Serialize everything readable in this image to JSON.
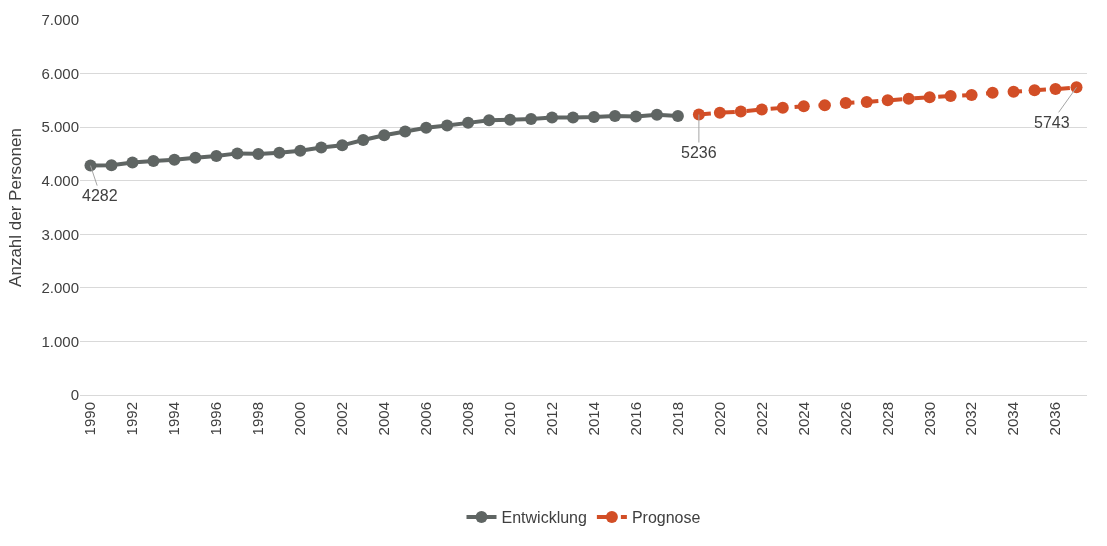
{
  "chart_data": {
    "type": "line",
    "ylabel": "Anzahl der Personen",
    "x": [
      1990,
      1991,
      1992,
      1993,
      1994,
      1995,
      1996,
      1997,
      1998,
      1999,
      2000,
      2001,
      2002,
      2003,
      2004,
      2005,
      2006,
      2007,
      2008,
      2009,
      2010,
      2011,
      2012,
      2013,
      2014,
      2015,
      2016,
      2017,
      2018
    ],
    "series": [
      {
        "name": "Entwicklung",
        "color": "#5f6563",
        "line_style": "solid",
        "values": [
          4282,
          4290,
          4340,
          4370,
          4390,
          4430,
          4460,
          4510,
          4500,
          4520,
          4560,
          4620,
          4660,
          4760,
          4850,
          4920,
          4990,
          5030,
          5080,
          5130,
          5140,
          5150,
          5180,
          5180,
          5190,
          5210,
          5200,
          5230,
          5210
        ]
      },
      {
        "name": "Prognose",
        "color": "#d24e26",
        "line_style": "dashed",
        "x": [
          2019,
          2020,
          2021,
          2022,
          2023,
          2024,
          2025,
          2026,
          2027,
          2028,
          2029,
          2030,
          2031,
          2032,
          2033,
          2034,
          2035,
          2036,
          2037
        ],
        "values": [
          5236,
          5270,
          5290,
          5330,
          5360,
          5390,
          5410,
          5450,
          5470,
          5500,
          5530,
          5560,
          5580,
          5600,
          5640,
          5660,
          5690,
          5710,
          5743
        ]
      }
    ],
    "xlim": [
      1989.5,
      2037.5
    ],
    "xticks": [
      1990,
      1992,
      1994,
      1996,
      1998,
      2000,
      2002,
      2004,
      2006,
      2008,
      2010,
      2012,
      2014,
      2016,
      2018,
      2020,
      2022,
      2024,
      2026,
      2028,
      2030,
      2032,
      2034,
      2036
    ],
    "ylim": [
      0,
      7000
    ],
    "yticks": [
      {
        "value": 0,
        "label": "0"
      },
      {
        "value": 1000,
        "label": "1.000"
      },
      {
        "value": 2000,
        "label": "2.000"
      },
      {
        "value": 3000,
        "label": "3.000"
      },
      {
        "value": 4000,
        "label": "4.000"
      },
      {
        "value": 5000,
        "label": "5.000"
      },
      {
        "value": 6000,
        "label": "6.000"
      },
      {
        "value": 7000,
        "label": "7.000"
      }
    ],
    "annotations": [
      {
        "text": "4282",
        "x": 1990,
        "y": 4282
      },
      {
        "text": "5236",
        "x": 2019,
        "y": 5236
      },
      {
        "text": "5743",
        "x": 2037,
        "y": 5743
      }
    ],
    "grid": "y",
    "legend": "bottom",
    "marker": "circle"
  }
}
